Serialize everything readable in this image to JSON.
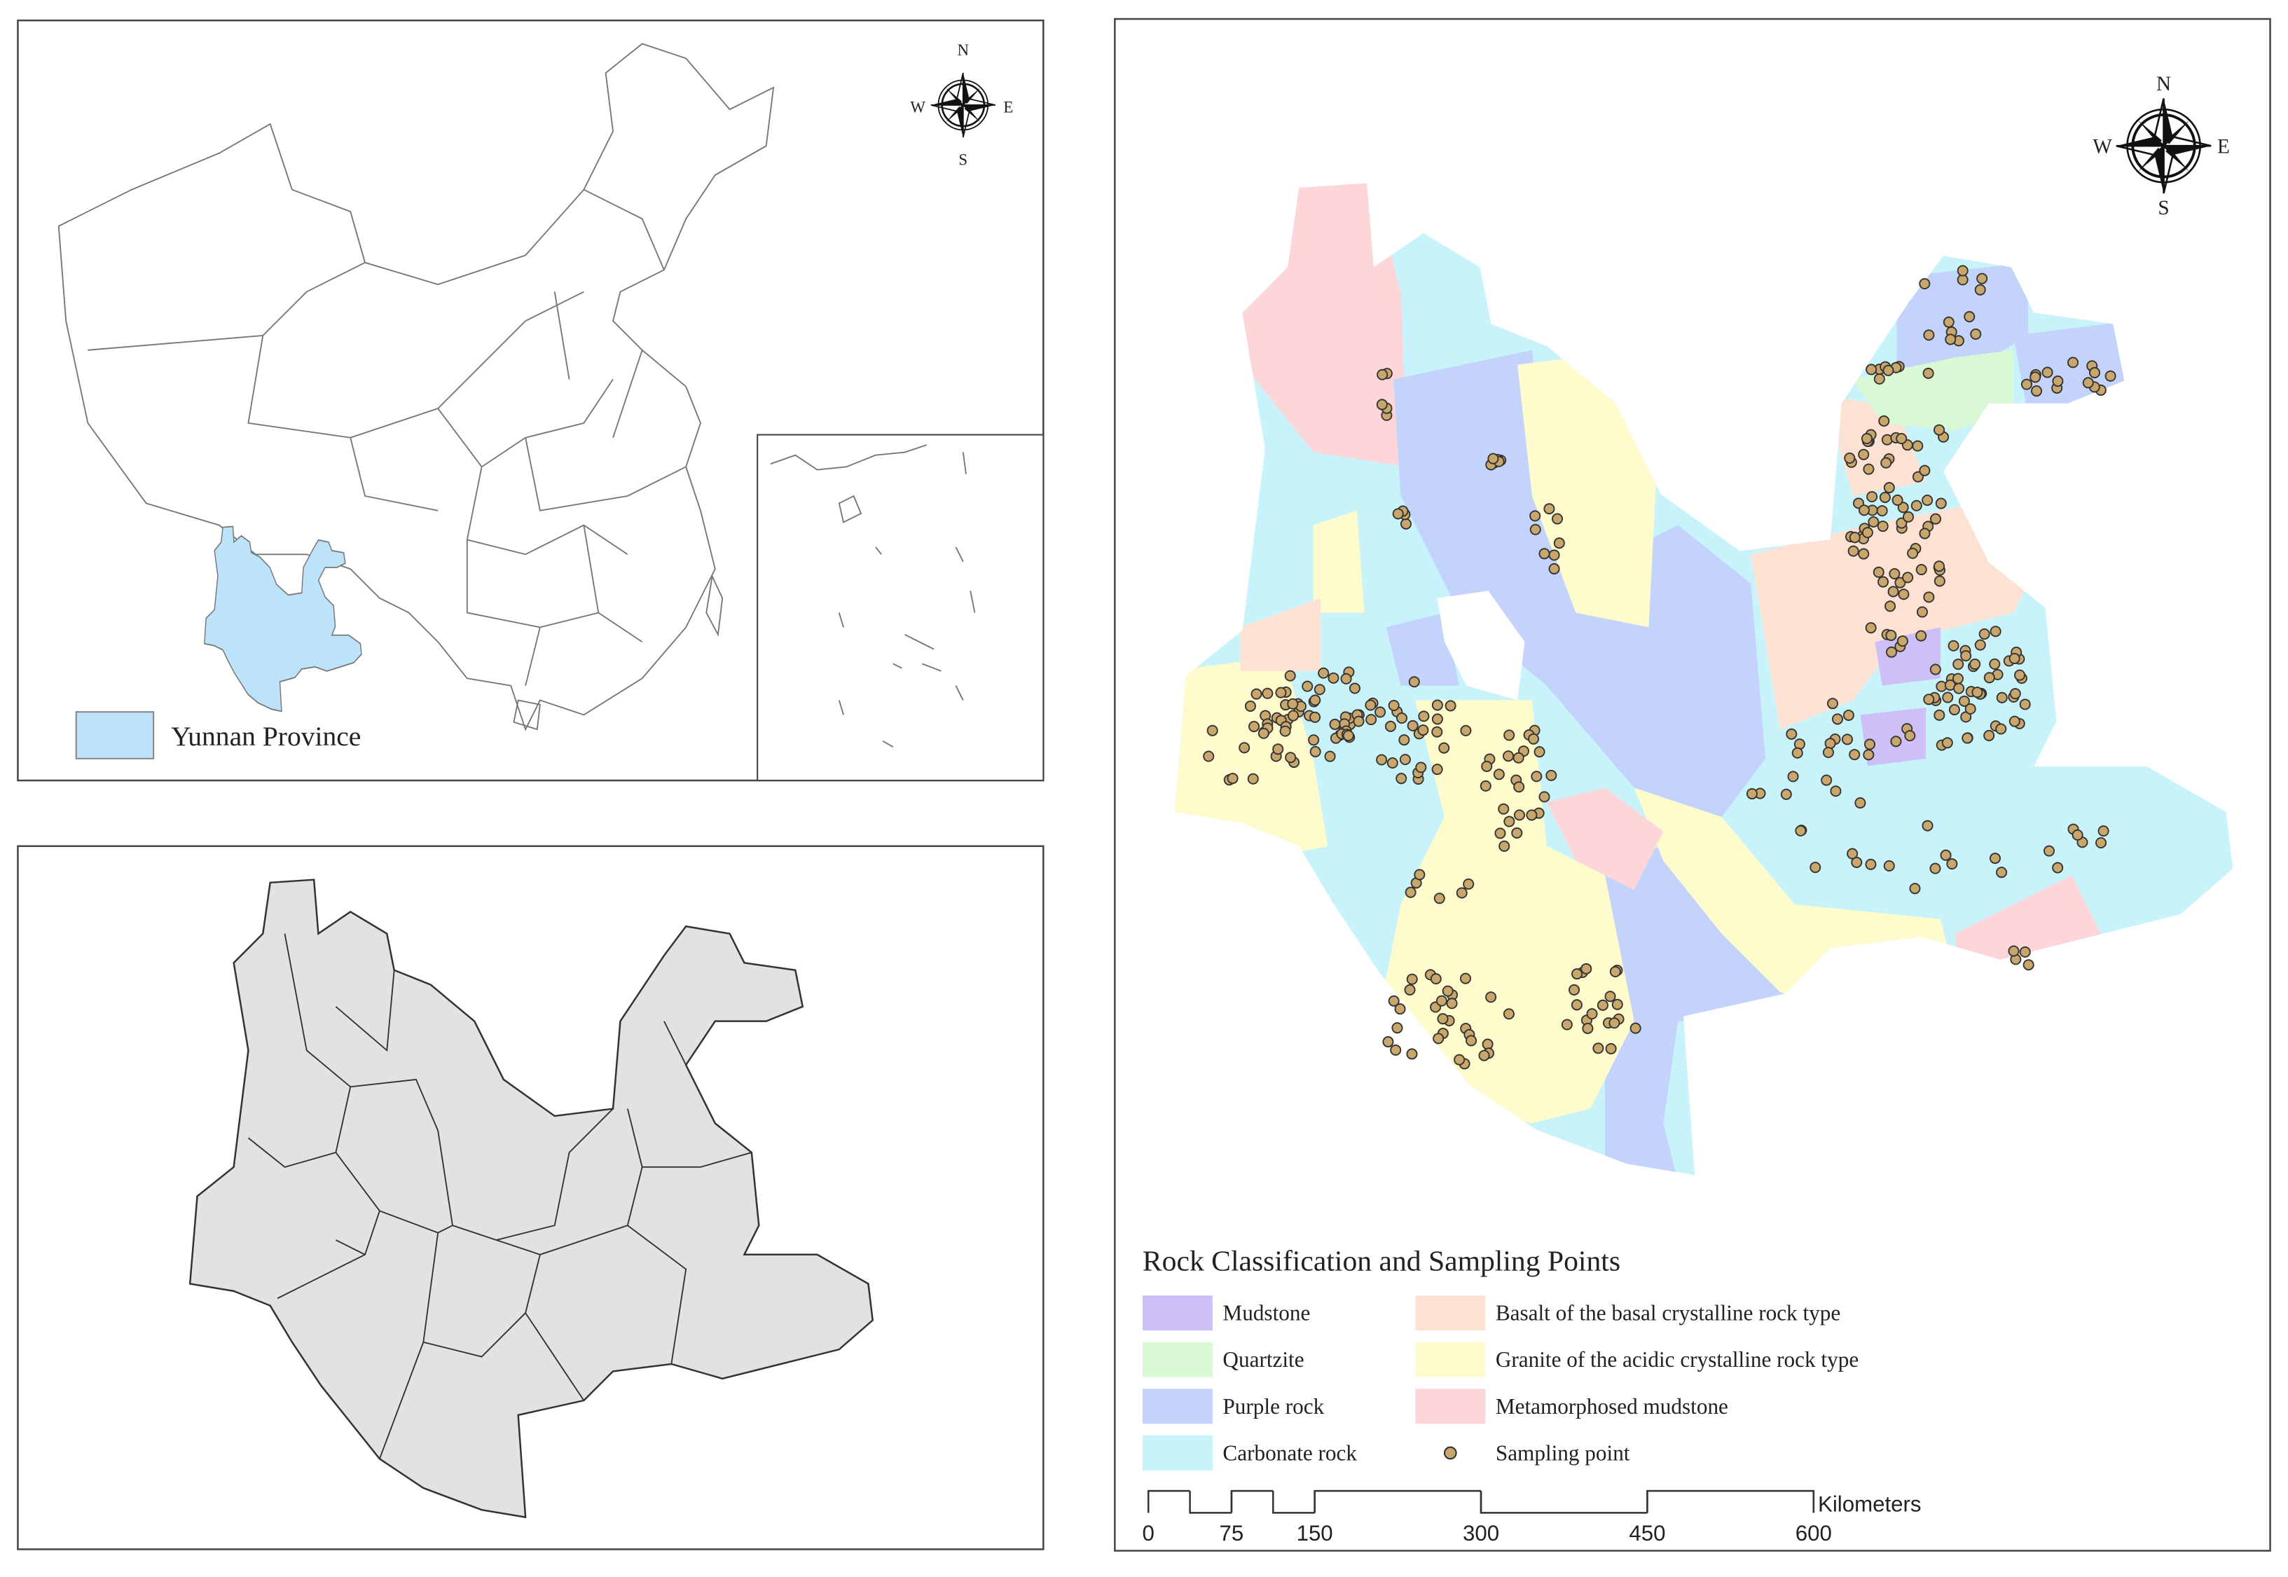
{
  "china_map": {
    "compass": {
      "north": "N",
      "south": "S",
      "east": "E",
      "west": "W"
    },
    "legend": {
      "label": "Yunnan Province",
      "color": "#bde3fa"
    }
  },
  "rock_map": {
    "compass": {
      "north": "N",
      "south": "S",
      "east": "E",
      "west": "W"
    },
    "legend": {
      "title": "Rock Classification and Sampling Points",
      "items": [
        {
          "label": "Mudstone",
          "color": "#cdc0f7"
        },
        {
          "label": "Quartzite",
          "color": "#d9f9d4"
        },
        {
          "label": "Purple rock",
          "color": "#c3d3fb"
        },
        {
          "label": "Carbonate rock",
          "color": "#c8f3fb"
        },
        {
          "label": "Basalt of the basal crystalline rock type",
          "color": "#fde2d4"
        },
        {
          "label": "Granite of the acidic crystalline rock type",
          "color": "#fefccc"
        },
        {
          "label": "Metamorphosed mudstone",
          "color": "#fdd6da"
        },
        {
          "label": "Sampling point",
          "color": "#c9a66b"
        }
      ]
    },
    "scale_bar": {
      "unit": "Kilometers",
      "ticks": [
        0,
        75,
        150,
        300,
        450,
        600
      ]
    }
  }
}
